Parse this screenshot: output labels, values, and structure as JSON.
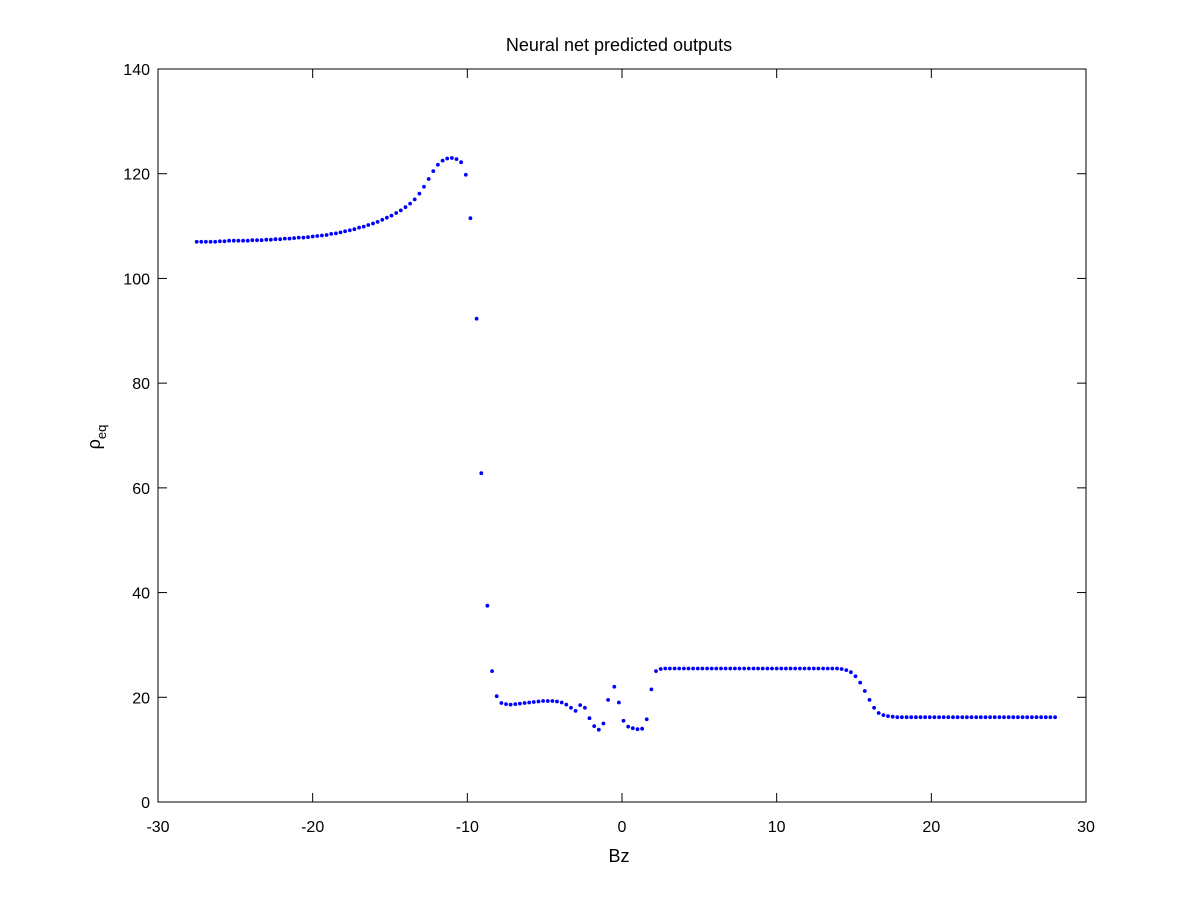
{
  "chart_data": {
    "type": "scatter",
    "title": "Neural net predicted outputs",
    "xlabel": "Bz",
    "ylabel": {
      "base": "ρ",
      "subscript": "eq"
    },
    "xlim": [
      -30,
      30
    ],
    "ylim": [
      0,
      140
    ],
    "xticks": [
      -30,
      -20,
      -10,
      0,
      10,
      20,
      30
    ],
    "yticks": [
      0,
      20,
      40,
      60,
      80,
      100,
      120,
      140
    ],
    "grid": false,
    "legend": "none",
    "marker_color": "#0000ff",
    "series": [
      {
        "x": [
          -27.5,
          -27.2,
          -26.9,
          -26.6,
          -26.3,
          -26.0,
          -25.7,
          -25.4,
          -25.1,
          -24.8,
          -24.5,
          -24.2,
          -23.9,
          -23.6,
          -23.3,
          -23.0,
          -22.7,
          -22.4,
          -22.1,
          -21.8,
          -21.5,
          -21.2,
          -20.9,
          -20.6,
          -20.3,
          -20.0,
          -19.7,
          -19.4,
          -19.1,
          -18.8,
          -18.5,
          -18.2,
          -17.9,
          -17.6,
          -17.3,
          -17.0,
          -16.7,
          -16.4,
          -16.1,
          -15.8,
          -15.5,
          -15.2,
          -14.9,
          -14.6,
          -14.3,
          -14.0,
          -13.7,
          -13.4,
          -13.1,
          -12.8,
          -12.5,
          -12.2,
          -11.9,
          -11.6,
          -11.3,
          -11.0,
          -10.7,
          -10.4,
          -10.1,
          -9.8,
          -9.4,
          -9.1,
          -8.7,
          -8.4,
          -8.1,
          -7.8,
          -7.5,
          -7.2,
          -6.9,
          -6.6,
          -6.3,
          -6.0,
          -5.7,
          -5.4,
          -5.1,
          -4.8,
          -4.5,
          -4.2,
          -3.9,
          -3.6,
          -3.3,
          -3.0,
          -2.7,
          -2.4,
          -2.1,
          -1.8,
          -1.5,
          -1.2,
          -0.9,
          -0.5,
          -0.2,
          0.1,
          0.4,
          0.7,
          1.0,
          1.3,
          1.6,
          1.9,
          2.2,
          2.5,
          2.8,
          3.1,
          3.4,
          3.7,
          4.0,
          4.3,
          4.6,
          4.9,
          5.2,
          5.5,
          5.8,
          6.1,
          6.4,
          6.7,
          7.0,
          7.3,
          7.6,
          7.9,
          8.2,
          8.5,
          8.8,
          9.1,
          9.4,
          9.7,
          10.0,
          10.3,
          10.6,
          10.9,
          11.2,
          11.5,
          11.8,
          12.1,
          12.4,
          12.7,
          13.0,
          13.3,
          13.6,
          13.9,
          14.2,
          14.5,
          14.8,
          15.1,
          15.4,
          15.7,
          16.0,
          16.3,
          16.6,
          16.9,
          17.2,
          17.5,
          17.8,
          18.1,
          18.4,
          18.7,
          19.0,
          19.3,
          19.6,
          19.9,
          20.2,
          20.5,
          20.8,
          21.1,
          21.4,
          21.7,
          22.0,
          22.3,
          22.6,
          22.9,
          23.2,
          23.5,
          23.8,
          24.1,
          24.4,
          24.7,
          25.0,
          25.3,
          25.6,
          25.9,
          26.2,
          26.5,
          26.8,
          27.1,
          27.4,
          27.7,
          28.0
        ],
        "y": [
          107.0,
          107.0,
          107.0,
          107.0,
          107.0,
          107.1,
          107.1,
          107.2,
          107.2,
          107.2,
          107.2,
          107.2,
          107.3,
          107.3,
          107.3,
          107.4,
          107.4,
          107.5,
          107.5,
          107.6,
          107.6,
          107.7,
          107.8,
          107.8,
          107.9,
          108.0,
          108.1,
          108.2,
          108.3,
          108.5,
          108.6,
          108.8,
          109.0,
          109.2,
          109.4,
          109.7,
          109.9,
          110.2,
          110.5,
          110.8,
          111.2,
          111.6,
          112.0,
          112.5,
          113.0,
          113.6,
          114.3,
          115.1,
          116.2,
          117.5,
          119.0,
          120.5,
          121.7,
          122.5,
          122.9,
          123.0,
          122.8,
          122.2,
          119.8,
          111.5,
          92.3,
          62.8,
          37.5,
          25.0,
          20.2,
          18.9,
          18.7,
          18.6,
          18.7,
          18.8,
          18.9,
          19.0,
          19.1,
          19.2,
          19.3,
          19.3,
          19.3,
          19.2,
          19.0,
          18.6,
          18.0,
          17.4,
          18.5,
          18.0,
          16.0,
          14.5,
          13.8,
          15.0,
          19.5,
          22.0,
          19.0,
          15.5,
          14.4,
          14.1,
          13.9,
          14.0,
          15.8,
          21.5,
          25.0,
          25.4,
          25.5,
          25.5,
          25.5,
          25.5,
          25.5,
          25.5,
          25.5,
          25.5,
          25.5,
          25.5,
          25.5,
          25.5,
          25.5,
          25.5,
          25.5,
          25.5,
          25.5,
          25.5,
          25.5,
          25.5,
          25.5,
          25.5,
          25.5,
          25.5,
          25.5,
          25.5,
          25.5,
          25.5,
          25.5,
          25.5,
          25.5,
          25.5,
          25.5,
          25.5,
          25.5,
          25.5,
          25.5,
          25.5,
          25.4,
          25.2,
          24.8,
          24.0,
          22.8,
          21.2,
          19.5,
          18.0,
          17.0,
          16.6,
          16.4,
          16.3,
          16.2,
          16.2,
          16.2,
          16.2,
          16.2,
          16.2,
          16.2,
          16.2,
          16.2,
          16.2,
          16.2,
          16.2,
          16.2,
          16.2,
          16.2,
          16.2,
          16.2,
          16.2,
          16.2,
          16.2,
          16.2,
          16.2,
          16.2,
          16.2,
          16.2,
          16.2,
          16.2,
          16.2,
          16.2,
          16.2,
          16.2,
          16.2,
          16.2,
          16.2,
          16.2
        ]
      }
    ]
  }
}
